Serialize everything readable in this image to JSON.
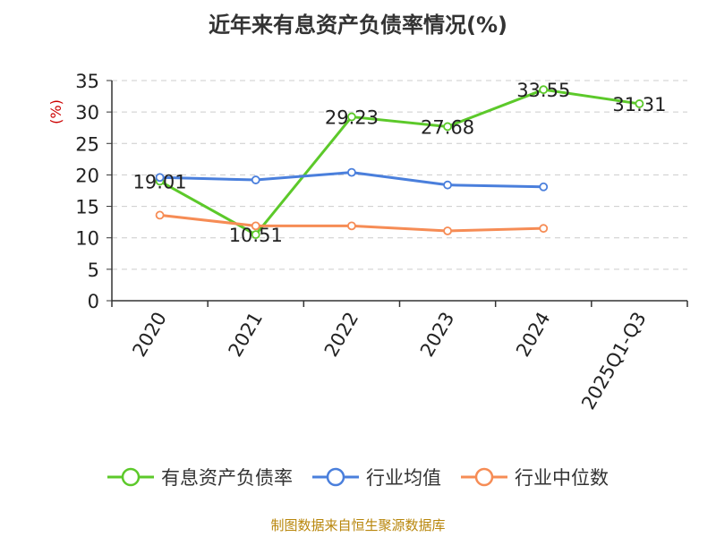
{
  "title": "近年来有息资产负债率情况(%)",
  "source": "制图数据来自恒生聚源数据库",
  "colors": {
    "series1": "#5cc92a",
    "series2": "#4a7fdc",
    "series3": "#f68c55",
    "ylabel": "#cc0000",
    "axis": "#333333",
    "grid": "#cccccc"
  },
  "chart_data": {
    "type": "line",
    "title": "近年来有息资产负债率情况(%)",
    "ylabel": "(%)",
    "xlabel": "",
    "categories": [
      "2020",
      "2021",
      "2022",
      "2023",
      "2024",
      "2025Q1-Q3"
    ],
    "ylim": [
      0,
      35
    ],
    "yticks": [
      0,
      5,
      10,
      15,
      20,
      25,
      30,
      35
    ],
    "grid": "horizontal-dashed",
    "legend_position": "bottom",
    "series": [
      {
        "name": "有息资产负债率",
        "values": [
          19.01,
          10.51,
          29.23,
          27.68,
          33.55,
          31.31
        ],
        "labels": [
          "19.01",
          "10.51",
          "29.23",
          "27.68",
          "33.55",
          "31.31"
        ],
        "color_key": "series1"
      },
      {
        "name": "行业均值",
        "values": [
          19.6,
          19.2,
          20.4,
          18.4,
          18.1,
          null
        ],
        "color_key": "series2"
      },
      {
        "name": "行业中位数",
        "values": [
          13.6,
          11.9,
          11.9,
          11.1,
          11.5,
          null
        ],
        "color_key": "series3"
      }
    ]
  }
}
